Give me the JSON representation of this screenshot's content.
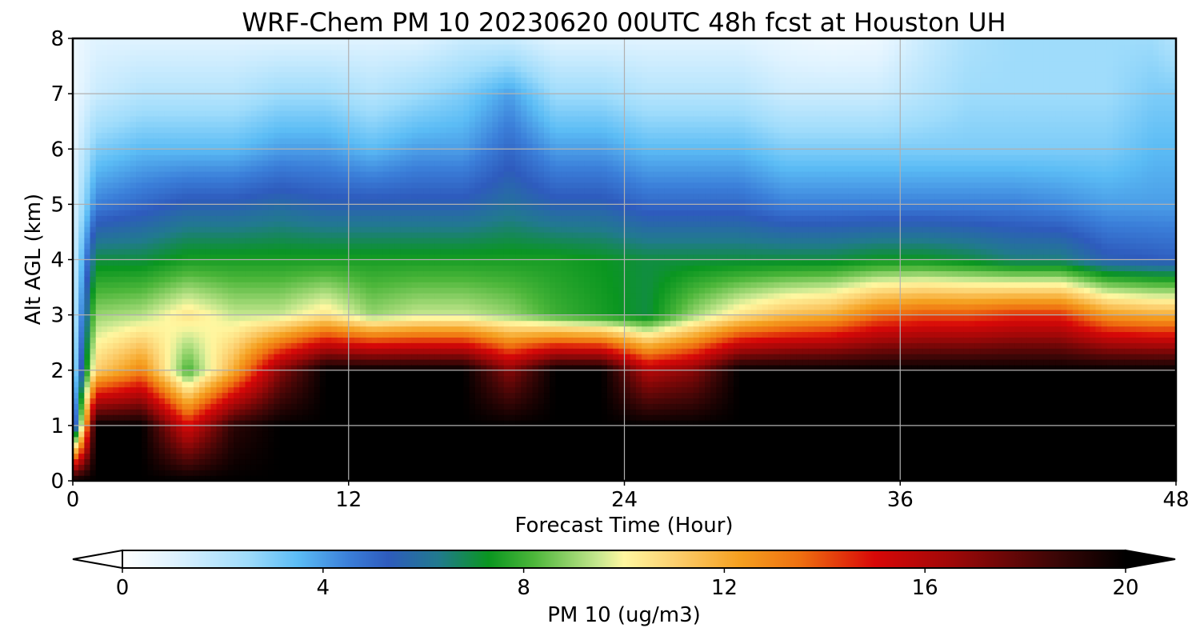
{
  "chart_data": {
    "type": "heatmap",
    "title": "WRF-Chem PM 10  20230620 00UTC 48h fcst at Houston UH",
    "xlabel": "Forecast Time (Hour)",
    "ylabel": "Alt AGL (km)",
    "xlim": [
      0,
      48
    ],
    "ylim": [
      0,
      8
    ],
    "xticks": [
      0,
      12,
      24,
      36,
      48
    ],
    "yticks": [
      0,
      1,
      2,
      3,
      4,
      5,
      6,
      7,
      8
    ],
    "grid": true,
    "colorbar": {
      "label": "PM 10  (ug/m3)",
      "range": [
        0,
        20
      ],
      "ticks": [
        0,
        4,
        8,
        12,
        16,
        20
      ],
      "extend": "both",
      "color_stops": [
        {
          "value": 0,
          "color": "#ffffff"
        },
        {
          "value": 1,
          "color": "#e0f3ff"
        },
        {
          "value": 2.5,
          "color": "#9fdcfb"
        },
        {
          "value": 3.5,
          "color": "#5bbcf5"
        },
        {
          "value": 4.5,
          "color": "#3b7fd9"
        },
        {
          "value": 5.3,
          "color": "#2e5bbd"
        },
        {
          "value": 6.3,
          "color": "#217a8e"
        },
        {
          "value": 7.3,
          "color": "#0a9620"
        },
        {
          "value": 8.2,
          "color": "#4cb63a"
        },
        {
          "value": 9.5,
          "color": "#c8e890"
        },
        {
          "value": 10,
          "color": "#fff7a0"
        },
        {
          "value": 11,
          "color": "#fcd070"
        },
        {
          "value": 12.3,
          "color": "#f5a020"
        },
        {
          "value": 13.5,
          "color": "#ef7010"
        },
        {
          "value": 15,
          "color": "#d80808"
        },
        {
          "value": 16.5,
          "color": "#a00808"
        },
        {
          "value": 18.5,
          "color": "#400606"
        },
        {
          "value": 20,
          "color": "#000000"
        }
      ]
    },
    "profile_levels": [
      0,
      1,
      2,
      3,
      4,
      5,
      6,
      7,
      8
    ],
    "profile_times": [
      0,
      1,
      3,
      5,
      7,
      9,
      11,
      13,
      15,
      17,
      19,
      21,
      23,
      25,
      27,
      29,
      31,
      33,
      35,
      37,
      39,
      41,
      43,
      45,
      47,
      48
    ],
    "profiles": [
      [
        20,
        3,
        2,
        1.5,
        1.2,
        1,
        0.8,
        0.6,
        0.5
      ],
      [
        20,
        20,
        11,
        9,
        7,
        4.5,
        3,
        1.5,
        1
      ],
      [
        20,
        20,
        13,
        9.3,
        7,
        5,
        3.5,
        2,
        1
      ],
      [
        20,
        15,
        8,
        10.5,
        7.5,
        5.5,
        3.5,
        2,
        1
      ],
      [
        20,
        19,
        12,
        9.5,
        7.5,
        5.5,
        3.5,
        2,
        1
      ],
      [
        20,
        20,
        17,
        9.5,
        7.5,
        5.8,
        4,
        2.5,
        1
      ],
      [
        20,
        20,
        20,
        10.5,
        7.5,
        5.5,
        4,
        2.5,
        1
      ],
      [
        20,
        20,
        20,
        9,
        7.5,
        5.5,
        3.5,
        2,
        1
      ],
      [
        20,
        20,
        20,
        9.5,
        7.5,
        5.5,
        4,
        2.5,
        1
      ],
      [
        20,
        20,
        20,
        9.5,
        7.5,
        5.5,
        4,
        3,
        1.5
      ],
      [
        20,
        20,
        17,
        9,
        7.5,
        6,
        5,
        4,
        1.5
      ],
      [
        20,
        20,
        20,
        8,
        7.5,
        5.5,
        4,
        2.5,
        1
      ],
      [
        20,
        20,
        20,
        7.5,
        7.3,
        5.5,
        4,
        2.5,
        1
      ],
      [
        20,
        20,
        16,
        7,
        7,
        5,
        3.5,
        2,
        1
      ],
      [
        20,
        20,
        17,
        9,
        7,
        5,
        3.5,
        2,
        1
      ],
      [
        20,
        20,
        20,
        10.5,
        7,
        5,
        3.5,
        2,
        1
      ],
      [
        20,
        20,
        20,
        11.5,
        7,
        4.5,
        3,
        1.5,
        0.7
      ],
      [
        20,
        20,
        20,
        12,
        7,
        4.5,
        3,
        1.5,
        0.5
      ],
      [
        20,
        20,
        20,
        13.5,
        7.3,
        4.5,
        3,
        1.5,
        0.6
      ],
      [
        20,
        20,
        20,
        14,
        7.3,
        4.5,
        3,
        2,
        1.5
      ],
      [
        20,
        20,
        20,
        14,
        7,
        4.5,
        3,
        2.5,
        2.2
      ],
      [
        20,
        20,
        20,
        14.5,
        6.5,
        4.5,
        3,
        2.5,
        2.5
      ],
      [
        20,
        20,
        20,
        14.5,
        6.5,
        4.3,
        3,
        2.5,
        2.5
      ],
      [
        20,
        20,
        20,
        12.5,
        5.5,
        4,
        3,
        2.5,
        2.5
      ],
      [
        20,
        20,
        20,
        12,
        5.3,
        4,
        3.5,
        3,
        2.5
      ],
      [
        20,
        20,
        20,
        12,
        5.2,
        4,
        3.5,
        3,
        2
      ]
    ]
  }
}
